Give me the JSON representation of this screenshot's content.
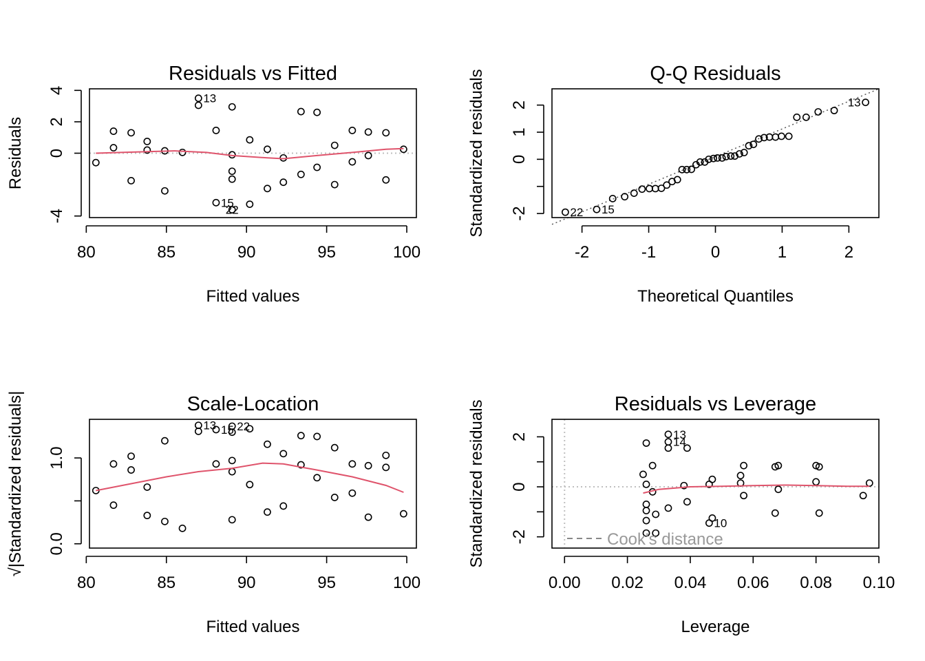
{
  "colors": {
    "smoother": "#df536b",
    "reference": "#bebebe",
    "points": "#000000"
  },
  "chart_data": [
    {
      "id": "rvf",
      "type": "scatter",
      "title": "Residuals vs Fitted",
      "xlabel": "Fitted values",
      "ylabel": "Residuals",
      "xlim": [
        80.2,
        100.6
      ],
      "ylim": [
        -4.1,
        4.1
      ],
      "xticks": [
        80,
        85,
        90,
        95,
        100
      ],
      "yticks": [
        -4,
        0,
        2,
        4
      ],
      "yticklabels": [
        "-4",
        "0",
        "2",
        "4"
      ],
      "points": [
        [
          80.6,
          -0.6
        ],
        [
          81.7,
          1.4
        ],
        [
          81.7,
          0.35
        ],
        [
          82.8,
          -1.75
        ],
        [
          82.8,
          1.3
        ],
        [
          83.8,
          0.75
        ],
        [
          83.8,
          0.2
        ],
        [
          84.9,
          -2.4
        ],
        [
          84.9,
          0.15
        ],
        [
          86.0,
          0.05
        ],
        [
          87.0,
          3.5
        ],
        [
          87.0,
          3.05
        ],
        [
          88.1,
          1.45
        ],
        [
          88.1,
          -3.15
        ],
        [
          89.1,
          2.95
        ],
        [
          89.1,
          -0.1
        ],
        [
          89.1,
          -1.15
        ],
        [
          89.1,
          -1.65
        ],
        [
          89.1,
          -3.6
        ],
        [
          90.2,
          0.85
        ],
        [
          90.2,
          -3.25
        ],
        [
          91.3,
          0.25
        ],
        [
          91.3,
          -2.25
        ],
        [
          92.3,
          -0.3
        ],
        [
          92.3,
          -1.85
        ],
        [
          93.4,
          2.65
        ],
        [
          93.4,
          -1.35
        ],
        [
          94.4,
          2.6
        ],
        [
          94.4,
          -0.9
        ],
        [
          95.5,
          0.5
        ],
        [
          95.5,
          -2.0
        ],
        [
          96.6,
          1.45
        ],
        [
          96.6,
          -0.55
        ],
        [
          97.6,
          1.35
        ],
        [
          97.6,
          -0.15
        ],
        [
          98.7,
          1.3
        ],
        [
          98.7,
          -1.7
        ],
        [
          99.8,
          0.25
        ]
      ],
      "smooth": [
        [
          80.6,
          0.0
        ],
        [
          83.8,
          0.1
        ],
        [
          85.5,
          0.15
        ],
        [
          87.5,
          0.05
        ],
        [
          89.1,
          -0.15
        ],
        [
          91.3,
          -0.3
        ],
        [
          92.3,
          -0.35
        ],
        [
          94.4,
          -0.15
        ],
        [
          96.6,
          0.05
        ],
        [
          98.7,
          0.25
        ],
        [
          99.8,
          0.3
        ]
      ],
      "hline": 0,
      "labels": [
        {
          "text": "13",
          "x": 87.0,
          "y": 3.5,
          "pos": "right"
        },
        {
          "text": "15",
          "x": 88.1,
          "y": -3.15,
          "pos": "right"
        },
        {
          "text": "22",
          "x": 89.1,
          "y": -3.6,
          "pos": "center"
        }
      ]
    },
    {
      "id": "qq",
      "type": "scatter",
      "title": "Q-Q Residuals",
      "xlabel": "Theoretical Quantiles",
      "ylabel": "Standardized residuals",
      "xlim": [
        -2.45,
        2.45
      ],
      "ylim": [
        -2.15,
        2.6
      ],
      "xticks": [
        -2,
        -1,
        0,
        1,
        2
      ],
      "yticks": [
        -2,
        -1,
        0,
        1,
        2
      ],
      "yticklabels": [
        "-2",
        "",
        "0",
        "1",
        "2"
      ],
      "points": [
        [
          -2.25,
          -1.95
        ],
        [
          -1.78,
          -1.85
        ],
        [
          -1.54,
          -1.45
        ],
        [
          -1.36,
          -1.38
        ],
        [
          -1.22,
          -1.25
        ],
        [
          -1.1,
          -1.1
        ],
        [
          -0.99,
          -1.08
        ],
        [
          -0.9,
          -1.08
        ],
        [
          -0.81,
          -1.07
        ],
        [
          -0.73,
          -0.95
        ],
        [
          -0.65,
          -0.82
        ],
        [
          -0.57,
          -0.75
        ],
        [
          -0.5,
          -0.38
        ],
        [
          -0.43,
          -0.38
        ],
        [
          -0.36,
          -0.37
        ],
        [
          -0.29,
          -0.2
        ],
        [
          -0.23,
          -0.1
        ],
        [
          -0.16,
          -0.1
        ],
        [
          -0.1,
          0.0
        ],
        [
          -0.03,
          0.03
        ],
        [
          0.03,
          0.05
        ],
        [
          0.1,
          0.05
        ],
        [
          0.16,
          0.1
        ],
        [
          0.23,
          0.12
        ],
        [
          0.29,
          0.12
        ],
        [
          0.36,
          0.2
        ],
        [
          0.43,
          0.25
        ],
        [
          0.5,
          0.5
        ],
        [
          0.57,
          0.55
        ],
        [
          0.65,
          0.75
        ],
        [
          0.73,
          0.8
        ],
        [
          0.81,
          0.82
        ],
        [
          0.9,
          0.82
        ],
        [
          0.99,
          0.85
        ],
        [
          1.1,
          0.85
        ],
        [
          1.22,
          1.55
        ],
        [
          1.36,
          1.55
        ],
        [
          1.54,
          1.75
        ],
        [
          1.78,
          1.8
        ],
        [
          2.25,
          2.1
        ]
      ],
      "refline": [
        [
          -2.45,
          -2.4
        ],
        [
          2.45,
          2.6
        ]
      ],
      "labels": [
        {
          "text": "22",
          "x": -2.25,
          "y": -1.95,
          "pos": "right"
        },
        {
          "text": "15",
          "x": -1.78,
          "y": -1.85,
          "pos": "right"
        },
        {
          "text": "13",
          "x": 2.25,
          "y": 2.1,
          "pos": "left"
        }
      ]
    },
    {
      "id": "sl",
      "type": "scatter",
      "title": "Scale-Location",
      "xlabel": "Fitted values",
      "ylabel": "√|Standardized residuals|",
      "xlim": [
        80.2,
        100.6
      ],
      "ylim": [
        -0.05,
        1.45
      ],
      "xticks": [
        80,
        85,
        90,
        95,
        100
      ],
      "yticks": [
        0.0,
        0.5,
        1.0
      ],
      "yticklabels": [
        "0.0",
        "",
        "1.0"
      ],
      "points": [
        [
          80.6,
          0.62
        ],
        [
          81.7,
          0.93
        ],
        [
          81.7,
          0.45
        ],
        [
          82.8,
          1.02
        ],
        [
          82.8,
          0.86
        ],
        [
          83.8,
          0.66
        ],
        [
          83.8,
          0.33
        ],
        [
          84.9,
          1.2
        ],
        [
          84.9,
          0.26
        ],
        [
          86.0,
          0.18
        ],
        [
          87.0,
          1.38
        ],
        [
          87.0,
          1.31
        ],
        [
          88.1,
          0.93
        ],
        [
          88.1,
          1.33
        ],
        [
          89.1,
          1.3
        ],
        [
          89.1,
          0.97
        ],
        [
          89.1,
          0.84
        ],
        [
          89.1,
          0.28
        ],
        [
          89.1,
          1.37
        ],
        [
          90.2,
          0.69
        ],
        [
          90.2,
          1.34
        ],
        [
          91.3,
          1.16
        ],
        [
          91.3,
          0.37
        ],
        [
          92.3,
          1.05
        ],
        [
          92.3,
          0.44
        ],
        [
          93.4,
          1.26
        ],
        [
          93.4,
          0.92
        ],
        [
          94.4,
          1.25
        ],
        [
          94.4,
          0.77
        ],
        [
          95.5,
          0.54
        ],
        [
          95.5,
          1.12
        ],
        [
          96.6,
          0.93
        ],
        [
          96.6,
          0.59
        ],
        [
          97.6,
          0.91
        ],
        [
          97.6,
          0.31
        ],
        [
          98.7,
          1.03
        ],
        [
          98.7,
          0.89
        ],
        [
          99.8,
          0.35
        ]
      ],
      "smooth": [
        [
          80.6,
          0.62
        ],
        [
          82.8,
          0.7
        ],
        [
          85.0,
          0.78
        ],
        [
          87.0,
          0.84
        ],
        [
          89.1,
          0.88
        ],
        [
          91.0,
          0.94
        ],
        [
          92.3,
          0.93
        ],
        [
          94.4,
          0.86
        ],
        [
          96.6,
          0.78
        ],
        [
          98.7,
          0.68
        ],
        [
          99.8,
          0.6
        ]
      ],
      "labels": [
        {
          "text": "13",
          "x": 87.0,
          "y": 1.38,
          "pos": "right"
        },
        {
          "text": "15",
          "x": 88.1,
          "y": 1.33,
          "pos": "right"
        },
        {
          "text": "22",
          "x": 89.1,
          "y": 1.37,
          "pos": "right"
        }
      ]
    },
    {
      "id": "rvl",
      "type": "scatter",
      "title": "Residuals vs Leverage",
      "xlabel": "Leverage",
      "ylabel": "Standardized residuals",
      "xlim": [
        -0.004,
        0.1
      ],
      "ylim": [
        -2.45,
        2.7
      ],
      "xticks": [
        0.0,
        0.02,
        0.04,
        0.06,
        0.08,
        0.1
      ],
      "xticklabels": [
        "0.00",
        "0.02",
        "0.04",
        "0.06",
        "0.08",
        "0.10"
      ],
      "yticks": [
        -2,
        -1,
        0,
        1,
        2
      ],
      "yticklabels": [
        "-2",
        "",
        "0",
        "",
        "2"
      ],
      "points": [
        [
          0.025,
          0.5
        ],
        [
          0.026,
          1.75
        ],
        [
          0.026,
          0.1
        ],
        [
          0.026,
          -0.7
        ],
        [
          0.026,
          -0.95
        ],
        [
          0.026,
          -1.35
        ],
        [
          0.026,
          -1.85
        ],
        [
          0.028,
          0.85
        ],
        [
          0.028,
          -0.2
        ],
        [
          0.029,
          -1.1
        ],
        [
          0.029,
          -1.85
        ],
        [
          0.033,
          2.1
        ],
        [
          0.033,
          1.8
        ],
        [
          0.033,
          1.55
        ],
        [
          0.033,
          -0.85
        ],
        [
          0.039,
          1.55
        ],
        [
          0.038,
          0.05
        ],
        [
          0.039,
          -0.6
        ],
        [
          0.046,
          0.1
        ],
        [
          0.046,
          -1.45
        ],
        [
          0.047,
          0.3
        ],
        [
          0.047,
          -1.25
        ],
        [
          0.056,
          0.45
        ],
        [
          0.056,
          0.15
        ],
        [
          0.057,
          0.85
        ],
        [
          0.057,
          -0.35
        ],
        [
          0.067,
          0.8
        ],
        [
          0.067,
          -1.05
        ],
        [
          0.068,
          0.85
        ],
        [
          0.068,
          -0.1
        ],
        [
          0.08,
          0.85
        ],
        [
          0.08,
          0.2
        ],
        [
          0.081,
          0.8
        ],
        [
          0.081,
          -1.05
        ],
        [
          0.095,
          -0.35
        ],
        [
          0.097,
          0.15
        ]
      ],
      "smooth": [
        [
          0.025,
          -0.25
        ],
        [
          0.03,
          -0.1
        ],
        [
          0.04,
          0.0
        ],
        [
          0.05,
          0.02
        ],
        [
          0.06,
          0.05
        ],
        [
          0.07,
          0.07
        ],
        [
          0.08,
          0.05
        ],
        [
          0.09,
          0.02
        ],
        [
          0.097,
          0.02
        ]
      ],
      "hline": 0,
      "vline": 0,
      "labels": [
        {
          "text": "13",
          "x": 0.033,
          "y": 2.1,
          "pos": "right"
        },
        {
          "text": "14",
          "x": 0.033,
          "y": 1.8,
          "pos": "right"
        },
        {
          "text": "10",
          "x": 0.046,
          "y": -1.45,
          "pos": "right"
        }
      ],
      "legend": {
        "text": "Cook's distance",
        "position": "bottom-left"
      }
    }
  ]
}
